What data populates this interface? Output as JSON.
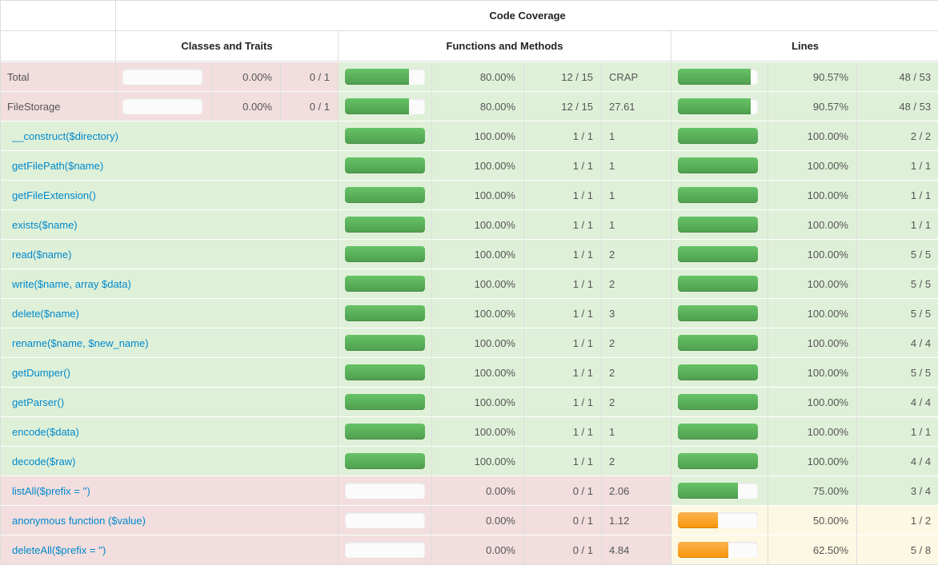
{
  "table": {
    "title": "Code Coverage",
    "groups": [
      {
        "label": "Classes and Traits"
      },
      {
        "label": "Functions and Methods"
      },
      {
        "label": "Lines"
      }
    ],
    "colors": {
      "success_bg": "#dff0d8",
      "danger_bg": "#f2dede",
      "warning_bg": "#fcf8e3",
      "bar_green": "#5cb85c",
      "bar_orange": "#f89406",
      "link": "#0088cc"
    },
    "rows": [
      {
        "type": "summary",
        "name": "Total",
        "name_status": "danger",
        "classes": {
          "bar_pct": 0,
          "bar_color": "green",
          "pct": "0.00%",
          "ratio": "0 / 1",
          "status": "danger"
        },
        "functions": {
          "bar_pct": 80,
          "bar_color": "green",
          "pct": "80.00%",
          "ratio": "12 / 15",
          "crap": "CRAP",
          "status": "success"
        },
        "lines": {
          "bar_pct": 90.57,
          "bar_color": "green",
          "pct": "90.57%",
          "ratio": "48 / 53",
          "status": "success"
        }
      },
      {
        "type": "summary",
        "name": "FileStorage",
        "name_status": "danger",
        "classes": {
          "bar_pct": 0,
          "bar_color": "green",
          "pct": "0.00%",
          "ratio": "0 / 1",
          "status": "danger"
        },
        "functions": {
          "bar_pct": 80,
          "bar_color": "green",
          "pct": "80.00%",
          "ratio": "12 / 15",
          "crap": "27.61",
          "status": "success"
        },
        "lines": {
          "bar_pct": 90.57,
          "bar_color": "green",
          "pct": "90.57%",
          "ratio": "48 / 53",
          "status": "success"
        }
      },
      {
        "type": "method",
        "name": "__construct($directory)",
        "name_status": "success",
        "functions": {
          "bar_pct": 100,
          "bar_color": "green",
          "pct": "100.00%",
          "ratio": "1 / 1",
          "crap": "1",
          "status": "success"
        },
        "lines": {
          "bar_pct": 100,
          "bar_color": "green",
          "pct": "100.00%",
          "ratio": "2 / 2",
          "status": "success"
        }
      },
      {
        "type": "method",
        "name": "getFilePath($name)",
        "name_status": "success",
        "functions": {
          "bar_pct": 100,
          "bar_color": "green",
          "pct": "100.00%",
          "ratio": "1 / 1",
          "crap": "1",
          "status": "success"
        },
        "lines": {
          "bar_pct": 100,
          "bar_color": "green",
          "pct": "100.00%",
          "ratio": "1 / 1",
          "status": "success"
        }
      },
      {
        "type": "method",
        "name": "getFileExtension()",
        "name_status": "success",
        "functions": {
          "bar_pct": 100,
          "bar_color": "green",
          "pct": "100.00%",
          "ratio": "1 / 1",
          "crap": "1",
          "status": "success"
        },
        "lines": {
          "bar_pct": 100,
          "bar_color": "green",
          "pct": "100.00%",
          "ratio": "1 / 1",
          "status": "success"
        }
      },
      {
        "type": "method",
        "name": "exists($name)",
        "name_status": "success",
        "functions": {
          "bar_pct": 100,
          "bar_color": "green",
          "pct": "100.00%",
          "ratio": "1 / 1",
          "crap": "1",
          "status": "success"
        },
        "lines": {
          "bar_pct": 100,
          "bar_color": "green",
          "pct": "100.00%",
          "ratio": "1 / 1",
          "status": "success"
        }
      },
      {
        "type": "method",
        "name": "read($name)",
        "name_status": "success",
        "functions": {
          "bar_pct": 100,
          "bar_color": "green",
          "pct": "100.00%",
          "ratio": "1 / 1",
          "crap": "2",
          "status": "success"
        },
        "lines": {
          "bar_pct": 100,
          "bar_color": "green",
          "pct": "100.00%",
          "ratio": "5 / 5",
          "status": "success"
        }
      },
      {
        "type": "method",
        "name": "write($name, array $data)",
        "name_status": "success",
        "functions": {
          "bar_pct": 100,
          "bar_color": "green",
          "pct": "100.00%",
          "ratio": "1 / 1",
          "crap": "2",
          "status": "success"
        },
        "lines": {
          "bar_pct": 100,
          "bar_color": "green",
          "pct": "100.00%",
          "ratio": "5 / 5",
          "status": "success"
        }
      },
      {
        "type": "method",
        "name": "delete($name)",
        "name_status": "success",
        "functions": {
          "bar_pct": 100,
          "bar_color": "green",
          "pct": "100.00%",
          "ratio": "1 / 1",
          "crap": "3",
          "status": "success"
        },
        "lines": {
          "bar_pct": 100,
          "bar_color": "green",
          "pct": "100.00%",
          "ratio": "5 / 5",
          "status": "success"
        }
      },
      {
        "type": "method",
        "name": "rename($name, $new_name)",
        "name_status": "success",
        "functions": {
          "bar_pct": 100,
          "bar_color": "green",
          "pct": "100.00%",
          "ratio": "1 / 1",
          "crap": "2",
          "status": "success"
        },
        "lines": {
          "bar_pct": 100,
          "bar_color": "green",
          "pct": "100.00%",
          "ratio": "4 / 4",
          "status": "success"
        }
      },
      {
        "type": "method",
        "name": "getDumper()",
        "name_status": "success",
        "functions": {
          "bar_pct": 100,
          "bar_color": "green",
          "pct": "100.00%",
          "ratio": "1 / 1",
          "crap": "2",
          "status": "success"
        },
        "lines": {
          "bar_pct": 100,
          "bar_color": "green",
          "pct": "100.00%",
          "ratio": "5 / 5",
          "status": "success"
        }
      },
      {
        "type": "method",
        "name": "getParser()",
        "name_status": "success",
        "functions": {
          "bar_pct": 100,
          "bar_color": "green",
          "pct": "100.00%",
          "ratio": "1 / 1",
          "crap": "2",
          "status": "success"
        },
        "lines": {
          "bar_pct": 100,
          "bar_color": "green",
          "pct": "100.00%",
          "ratio": "4 / 4",
          "status": "success"
        }
      },
      {
        "type": "method",
        "name": "encode($data)",
        "name_status": "success",
        "functions": {
          "bar_pct": 100,
          "bar_color": "green",
          "pct": "100.00%",
          "ratio": "1 / 1",
          "crap": "1",
          "status": "success"
        },
        "lines": {
          "bar_pct": 100,
          "bar_color": "green",
          "pct": "100.00%",
          "ratio": "1 / 1",
          "status": "success"
        }
      },
      {
        "type": "method",
        "name": "decode($raw)",
        "name_status": "success",
        "functions": {
          "bar_pct": 100,
          "bar_color": "green",
          "pct": "100.00%",
          "ratio": "1 / 1",
          "crap": "2",
          "status": "success"
        },
        "lines": {
          "bar_pct": 100,
          "bar_color": "green",
          "pct": "100.00%",
          "ratio": "4 / 4",
          "status": "success"
        }
      },
      {
        "type": "method",
        "name": "listAll($prefix = '')",
        "name_status": "danger",
        "functions": {
          "bar_pct": 0,
          "bar_color": "green",
          "pct": "0.00%",
          "ratio": "0 / 1",
          "crap": "2.06",
          "status": "danger"
        },
        "lines": {
          "bar_pct": 75,
          "bar_color": "green",
          "pct": "75.00%",
          "ratio": "3 / 4",
          "status": "success"
        }
      },
      {
        "type": "method",
        "name": "anonymous function ($value)",
        "name_status": "danger",
        "functions": {
          "bar_pct": 0,
          "bar_color": "green",
          "pct": "0.00%",
          "ratio": "0 / 1",
          "crap": "1.12",
          "status": "danger"
        },
        "lines": {
          "bar_pct": 50,
          "bar_color": "orange",
          "pct": "50.00%",
          "ratio": "1 / 2",
          "status": "warning"
        }
      },
      {
        "type": "method",
        "name": "deleteAll($prefix = '')",
        "name_status": "danger",
        "functions": {
          "bar_pct": 0,
          "bar_color": "green",
          "pct": "0.00%",
          "ratio": "0 / 1",
          "crap": "4.84",
          "status": "danger"
        },
        "lines": {
          "bar_pct": 62.5,
          "bar_color": "orange",
          "pct": "62.50%",
          "ratio": "5 / 8",
          "status": "warning"
        }
      }
    ]
  }
}
